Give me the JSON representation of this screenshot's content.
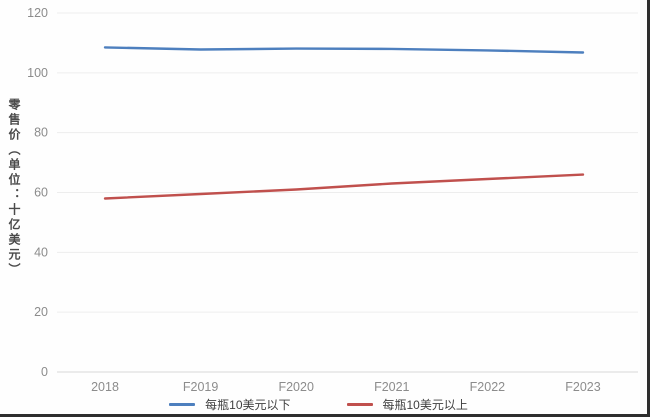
{
  "chart_data": {
    "type": "line",
    "title": "",
    "xlabel": "",
    "ylabel": "零售价（单位：十亿美元）",
    "categories": [
      "2018",
      "F2019",
      "F2020",
      "F2021",
      "F2022",
      "F2023"
    ],
    "series": [
      {
        "name": "每瓶10美元以下",
        "color": "#4d7fbe",
        "values": [
          108.5,
          107.8,
          108.1,
          108.0,
          107.5,
          106.8
        ]
      },
      {
        "name": "每瓶10美元以上",
        "color": "#c0504d",
        "values": [
          58.0,
          59.5,
          61.0,
          63.0,
          64.5,
          66.0
        ]
      }
    ],
    "ylim": [
      0,
      120
    ],
    "yticks": [
      0,
      20,
      40,
      60,
      80,
      100,
      120
    ],
    "grid": true,
    "legend_position": "bottom",
    "gridline_color": "#ededed",
    "baseline_color": "#d8d8d8",
    "tick_label_color": "#8c8c8c"
  }
}
